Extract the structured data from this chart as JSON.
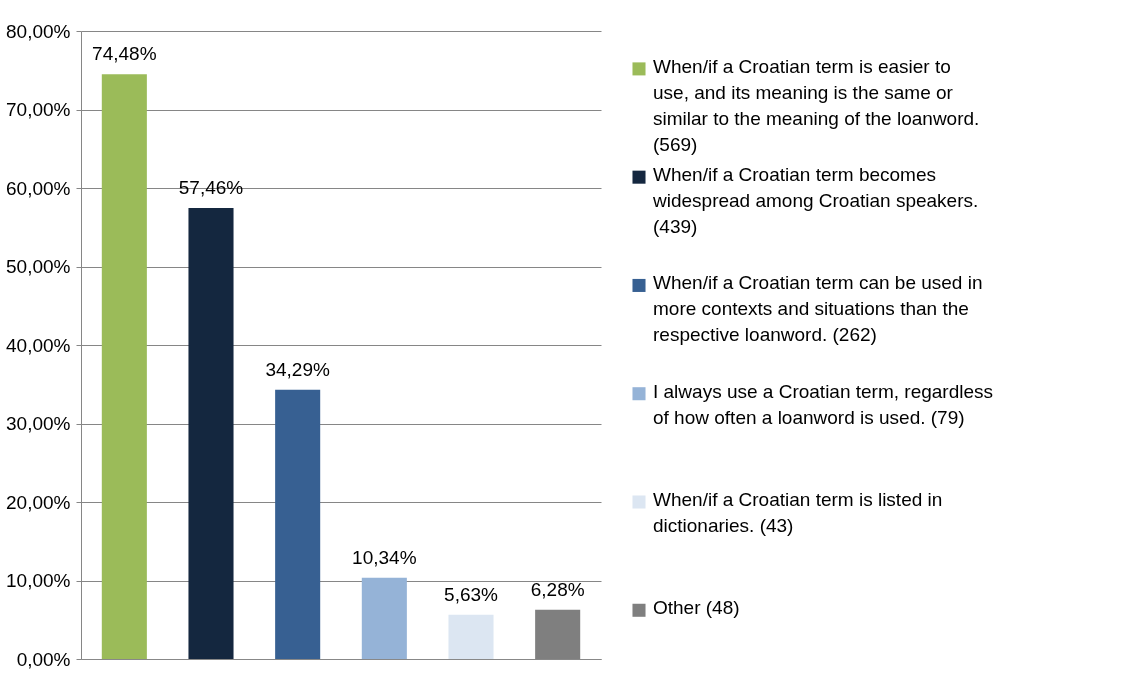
{
  "chart_data": {
    "type": "bar",
    "categories": [
      null,
      null,
      null,
      null,
      null,
      null
    ],
    "series": [
      {
        "name": "When/if a Croatian term is easier to use, and its meaning is the same or similar to the meaning of the loanword. (569)",
        "color": "#9bbb59",
        "values": [
          74.48,
          null,
          null,
          null,
          null,
          null
        ],
        "value_labels": [
          "74,48%",
          null,
          null,
          null,
          null,
          null
        ]
      },
      {
        "name": "When/if a Croatian term becomes widespread among Croatian speakers. (439)",
        "color": "#14273f",
        "values": [
          null,
          57.46,
          null,
          null,
          null,
          null
        ],
        "value_labels": [
          null,
          "57,46%",
          null,
          null,
          null,
          null
        ]
      },
      {
        "name": "When/if a Croatian term can be used in more contexts and situations than the respective loanword. (262)",
        "color": "#376092",
        "values": [
          null,
          null,
          34.29,
          null,
          null,
          null
        ],
        "value_labels": [
          null,
          null,
          "34,29%",
          null,
          null,
          null
        ]
      },
      {
        "name": "I always use a Croatian term, regardless of how often a loanword is used. (79)",
        "color": "#95b3d7",
        "values": [
          null,
          null,
          null,
          10.34,
          null,
          null
        ],
        "value_labels": [
          null,
          null,
          null,
          "10,34%",
          null,
          null
        ]
      },
      {
        "name": "When/if a Croatian term is listed in dictionaries. (43)",
        "color": "#dce6f2",
        "values": [
          null,
          null,
          null,
          null,
          5.63,
          null
        ],
        "value_labels": [
          null,
          null,
          null,
          null,
          "5,63%",
          null
        ]
      },
      {
        "name": "Other (48)",
        "color": "#7f7f7f",
        "values": [
          null,
          null,
          null,
          null,
          null,
          6.28
        ],
        "value_labels": [
          null,
          null,
          null,
          null,
          null,
          "6,28%"
        ]
      }
    ],
    "ylim": [
      0,
      80
    ],
    "yticks": [
      {
        "value": 0,
        "label": "0,00%"
      },
      {
        "value": 10,
        "label": "10,00%"
      },
      {
        "value": 20,
        "label": "20,00%"
      },
      {
        "value": 30,
        "label": "30,00%"
      },
      {
        "value": 40,
        "label": "40,00%"
      },
      {
        "value": 50,
        "label": "50,00%"
      },
      {
        "value": 60,
        "label": "60,00%"
      },
      {
        "value": 70,
        "label": "70,00%"
      },
      {
        "value": 80,
        "label": "80,00%"
      }
    ],
    "grid": "y",
    "legend": "right",
    "tick_labels": "y"
  }
}
